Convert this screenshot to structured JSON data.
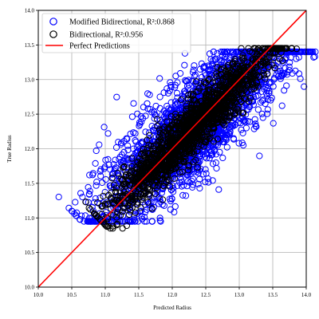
{
  "chart_data": {
    "type": "scatter",
    "xlabel": "Predicted Radius",
    "ylabel": "True Radius",
    "xlim": [
      10.0,
      14.0
    ],
    "ylim": [
      10.0,
      14.0
    ],
    "x_ticks": [
      "10.0",
      "10.5",
      "11.0",
      "11.5",
      "12.0",
      "12.5",
      "13.0",
      "13.5",
      "14.0"
    ],
    "y_ticks": [
      "10.0",
      "10.5",
      "11.0",
      "11.5",
      "12.0",
      "12.5",
      "13.0",
      "13.5",
      "14.0"
    ],
    "grid": true,
    "legend_position": "top-left",
    "series": [
      {
        "name": "Modified Bidirectional, R²:0.868",
        "marker": "hollow-circle",
        "color": "#0000ff",
        "x_range": [
          10.8,
          13.9
        ],
        "y_range": [
          10.95,
          13.4
        ],
        "note_points": [
          {
            "x": 10.8,
            "y": 11.0
          },
          {
            "x": 13.85,
            "y": 13.3
          },
          {
            "x": 13.7,
            "y": 13.32
          }
        ],
        "band_halfwidth": 0.28
      },
      {
        "name": "Bidirectional, R²:0.956",
        "marker": "hollow-circle",
        "color": "#000000",
        "x_range": [
          10.95,
          13.65
        ],
        "y_range": [
          10.85,
          13.45
        ],
        "note_points": [
          {
            "x": 13.5,
            "y": 13.38
          },
          {
            "x": 13.6,
            "y": 13.3
          },
          {
            "x": 11.05,
            "y": 10.88
          }
        ],
        "band_halfwidth": 0.14
      },
      {
        "name": "Perfect Predictions",
        "type": "line",
        "color": "#ff0000",
        "x": [
          10.0,
          14.0
        ],
        "y": [
          10.0,
          14.0
        ]
      }
    ]
  }
}
